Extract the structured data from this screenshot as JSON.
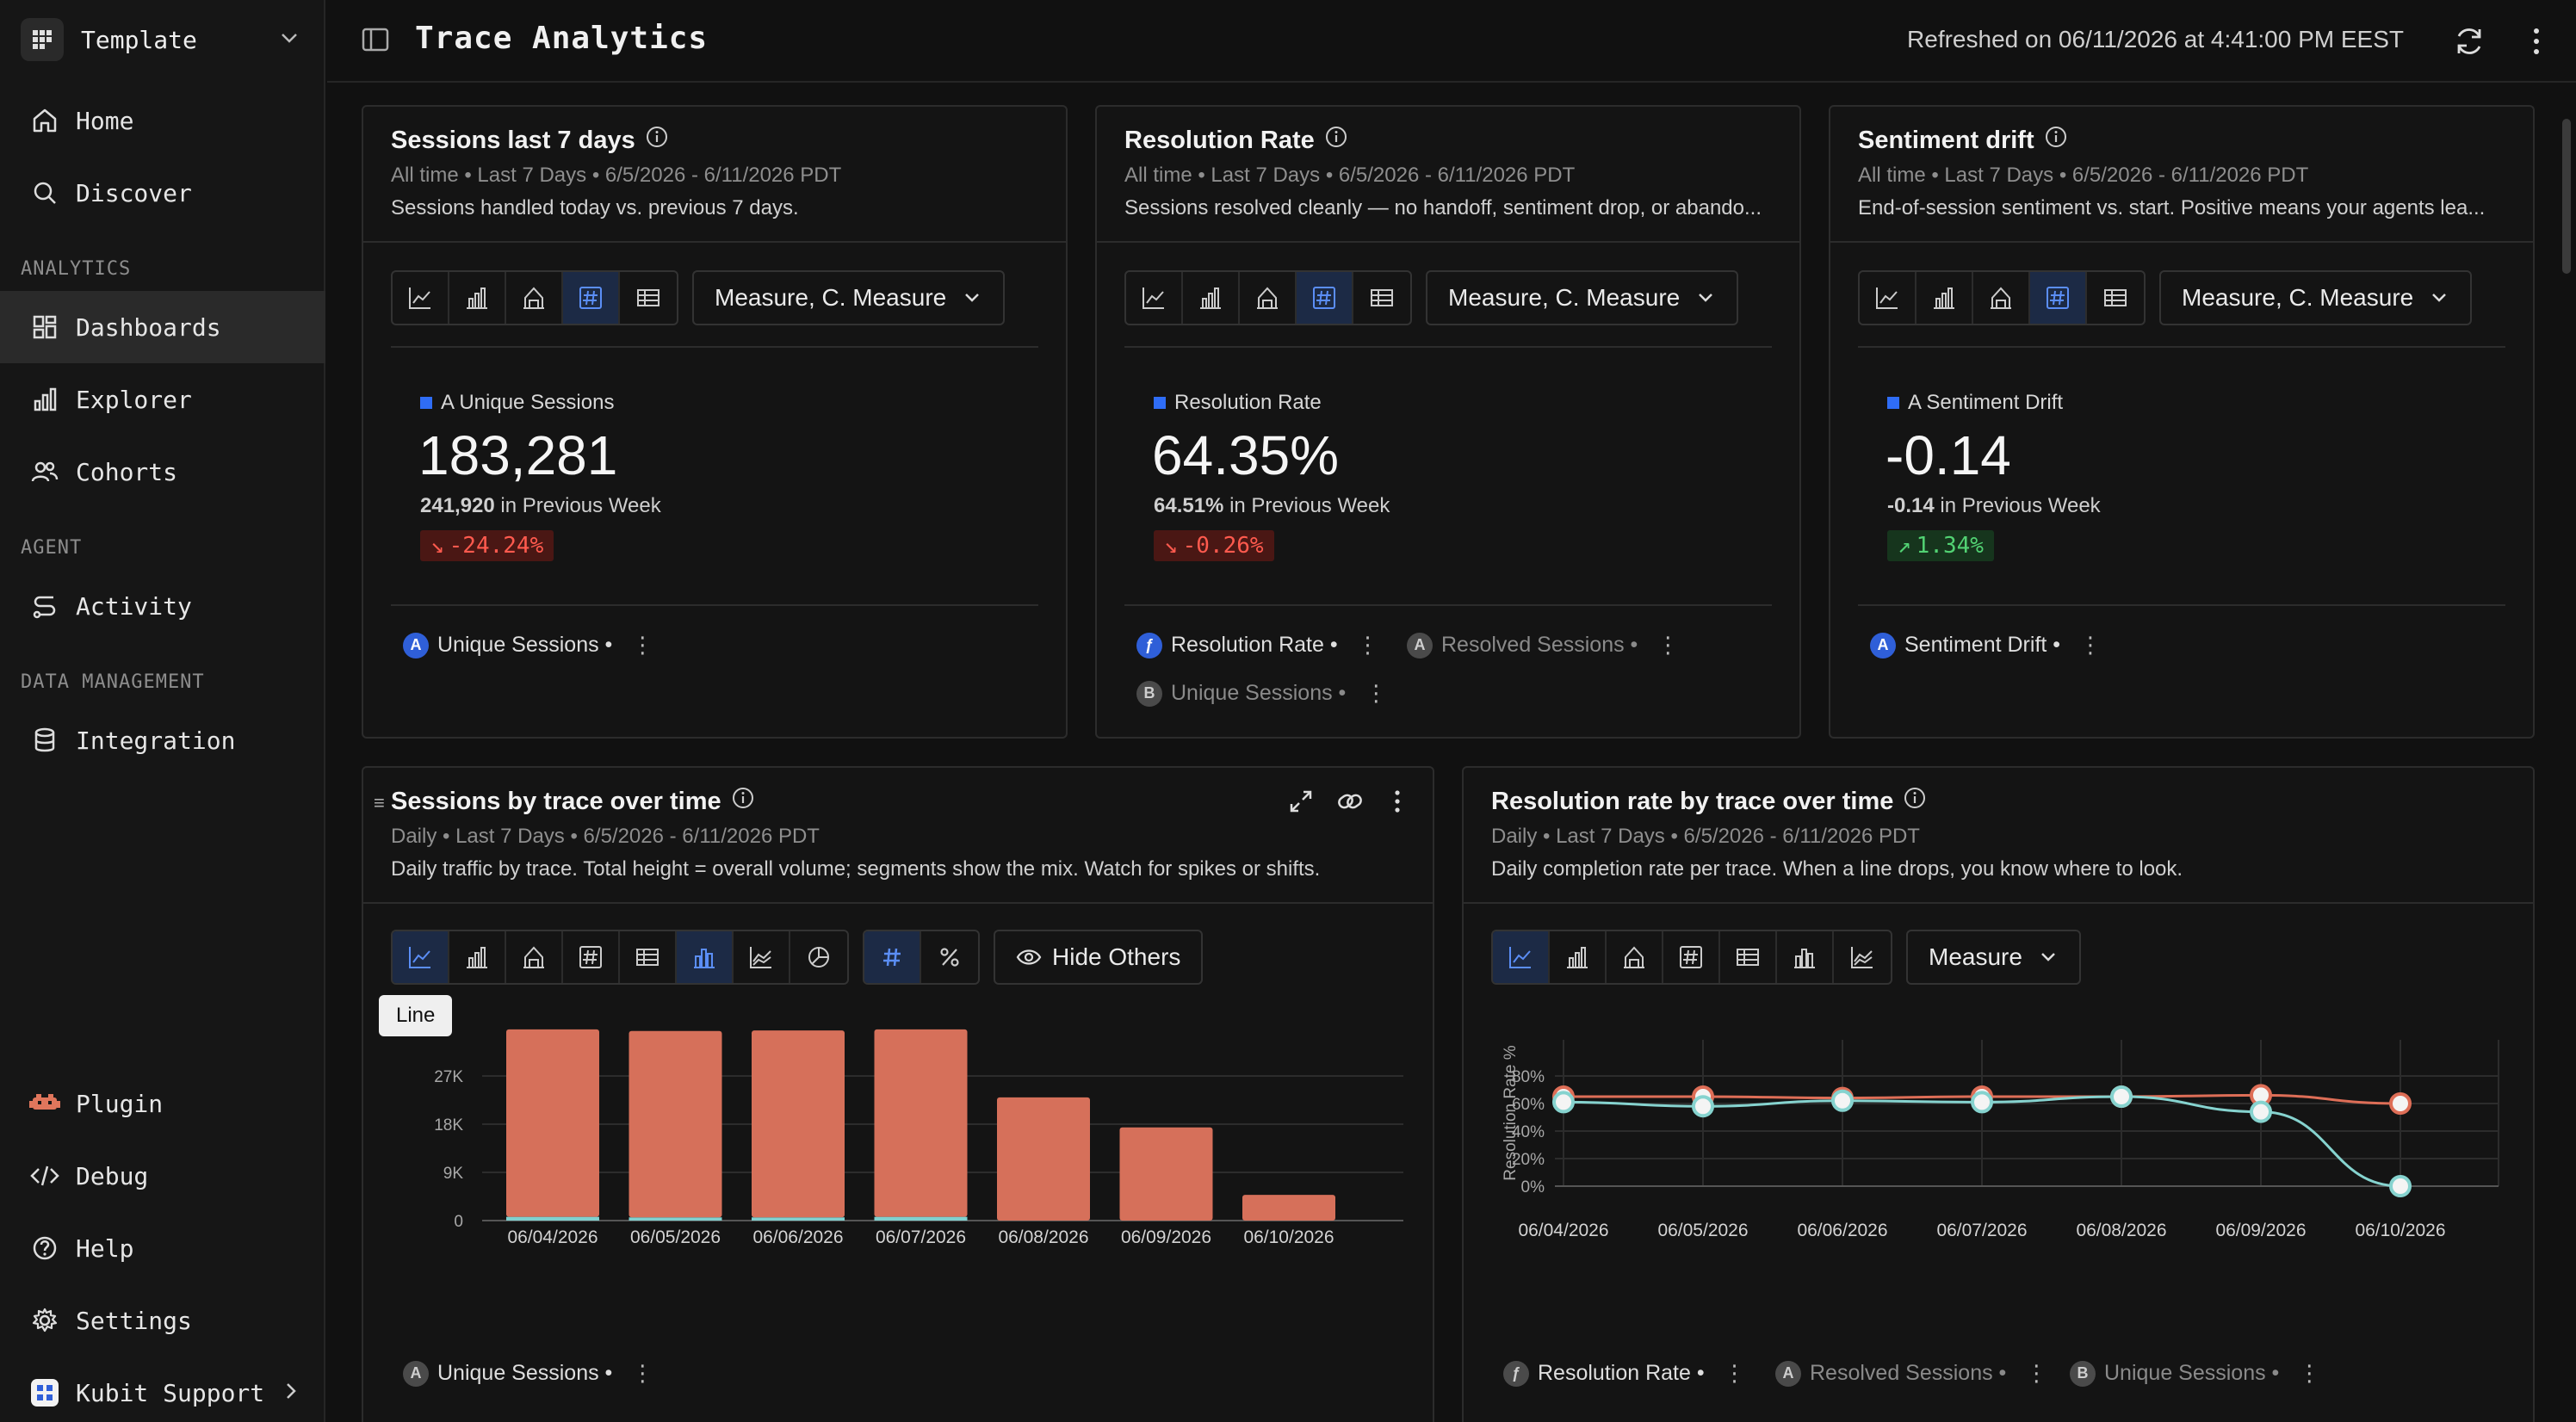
{
  "workspace": {
    "name": "Template"
  },
  "nav": {
    "home": "Home",
    "discover": "Discover",
    "section_analytics": "ANALYTICS",
    "dashboards": "Dashboards",
    "explorer": "Explorer",
    "cohorts": "Cohorts",
    "section_agent": "AGENT",
    "activity": "Activity",
    "section_data": "DATA MANAGEMENT",
    "integration": "Integration",
    "plugin": "Plugin",
    "debug": "Debug",
    "help": "Help",
    "settings": "Settings",
    "support": "Kubit Support"
  },
  "header": {
    "title": "Trace Analytics",
    "refreshed": "Refreshed on 06/11/2026 at 4:41:00 PM EEST"
  },
  "kpi_cards": [
    {
      "title": "Sessions last 7 days",
      "meta": "All time • Last 7 Days • 6/5/2026 - 6/11/2026 PDT",
      "desc": "Sessions handled today vs. previous 7 days.",
      "measure": "Measure, C. Measure",
      "label": "A Unique Sessions",
      "value": "183,281",
      "prev_value": "241,920",
      "prev_suffix": " in Previous Week",
      "delta": "-24.24%",
      "delta_arrow": "↘",
      "chip1": "Unique Sessions •"
    },
    {
      "title": "Resolution Rate",
      "meta": "All time • Last 7 Days • 6/5/2026 - 6/11/2026 PDT",
      "desc": "Sessions resolved cleanly — no handoff, sentiment drop, or abando...",
      "measure": "Measure, C. Measure",
      "label": "Resolution Rate",
      "value": "64.35%",
      "prev_value": "64.51%",
      "prev_suffix": " in Previous Week",
      "delta": "-0.26%",
      "delta_arrow": "↘",
      "chip1": "Resolution Rate •",
      "chip2": "Resolved Sessions •",
      "chip3": "Unique Sessions •"
    },
    {
      "title": "Sentiment drift",
      "meta": "All time • Last 7 Days • 6/5/2026 - 6/11/2026 PDT",
      "desc": "End-of-session sentiment vs. start. Positive means your agents lea...",
      "measure": "Measure, C. Measure",
      "label": "A Sentiment Drift",
      "value": "-0.14",
      "prev_value": "-0.14",
      "prev_suffix": " in Previous Week",
      "delta": "1.34%",
      "delta_arrow": "↗",
      "chip1": "Sentiment Drift •"
    }
  ],
  "chart_cards": [
    {
      "title": "Sessions by trace over time",
      "meta": "Daily • Last 7 Days • 6/5/2026 - 6/11/2026 PDT",
      "desc": "Daily traffic by trace. Total height = overall volume; segments show the mix. Watch for spikes or shifts.",
      "hide_others": "Hide Others",
      "tooltip": "Line",
      "chip1": "Unique Sessions •"
    },
    {
      "title": "Resolution rate by trace over time",
      "meta": "Daily • Last 7 Days • 6/5/2026 - 6/11/2026 PDT",
      "desc": "Daily completion rate per trace. When a line drops, you know where to look.",
      "measure": "Measure",
      "chip1": "Resolution Rate •",
      "chip2": "Resolved Sessions •",
      "chip3": "Unique Sessions •"
    }
  ],
  "chart_data": [
    {
      "type": "bar",
      "title": "Sessions by trace over time",
      "categories": [
        "06/04/2026",
        "06/05/2026",
        "06/06/2026",
        "06/07/2026",
        "06/08/2026",
        "06/09/2026",
        "06/10/2026"
      ],
      "y_ticks": [
        "0",
        "9K",
        "18K",
        "27K"
      ],
      "ylim": [
        0,
        36000
      ],
      "series": [
        {
          "values": [
            700,
            600,
            600,
            700,
            0,
            0,
            0
          ],
          "color": "#7fd0cf"
        },
        {
          "values": [
            35000,
            34800,
            34900,
            35000,
            23000,
            17400,
            4800
          ],
          "color": "#d6705a"
        }
      ],
      "grid": true
    },
    {
      "type": "line",
      "title": "Resolution rate by trace over time",
      "ylabel": "Resolution Rate %",
      "categories": [
        "06/04/2026",
        "06/05/2026",
        "06/06/2026",
        "06/07/2026",
        "06/08/2026",
        "06/09/2026",
        "06/10/2026"
      ],
      "y_ticks": [
        "0%",
        "20%",
        "40%",
        "60%",
        "80%"
      ],
      "ylim": [
        0,
        90
      ],
      "series": [
        {
          "values": [
            65,
            65,
            64,
            65,
            65,
            66,
            60
          ],
          "color": "#de6e57"
        },
        {
          "values": [
            61,
            58,
            62,
            61,
            65,
            54,
            0
          ],
          "color": "#86d3cf"
        }
      ],
      "grid": true
    }
  ]
}
